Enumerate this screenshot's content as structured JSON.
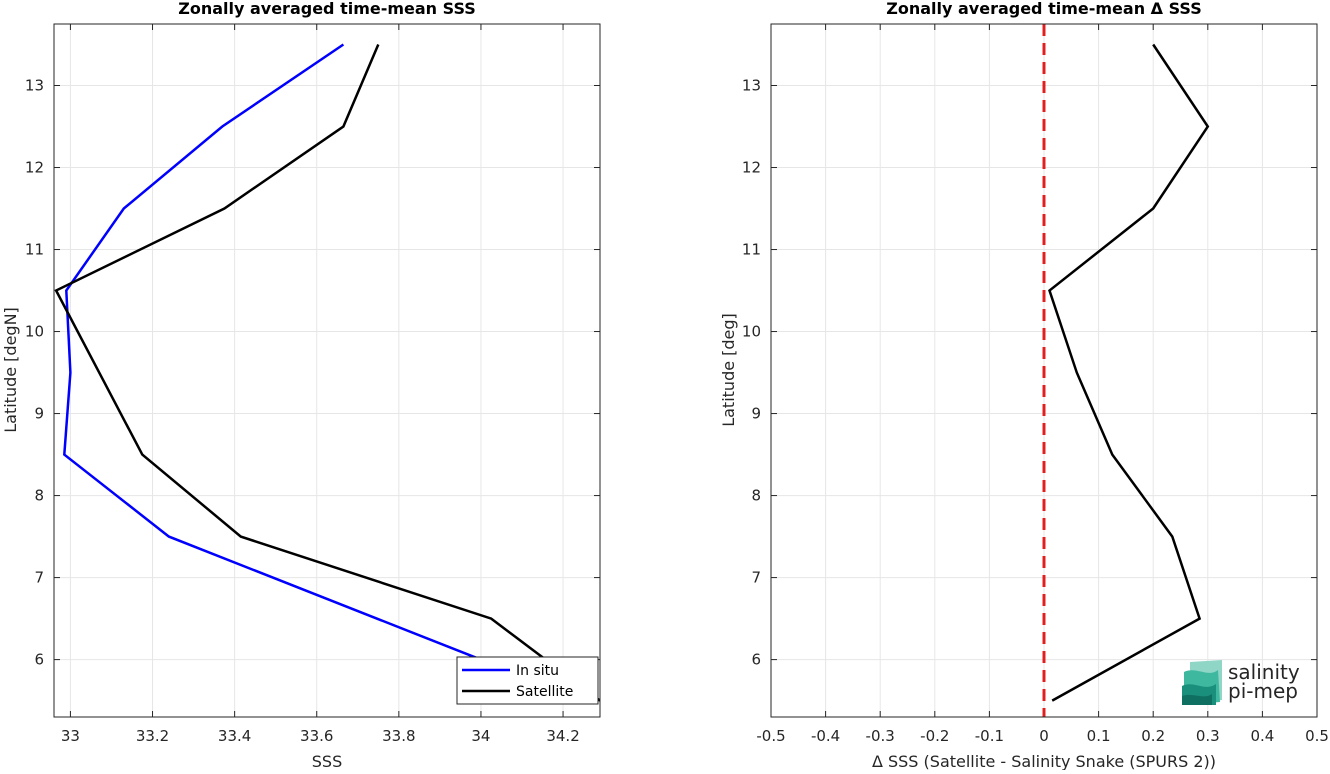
{
  "chart_data": [
    {
      "type": "line",
      "title": "Zonally averaged time-mean SSS",
      "xlabel": "SSS",
      "ylabel": "Latitude [degN]",
      "xlim": [
        32.96,
        34.29
      ],
      "ylim": [
        5.3,
        13.75
      ],
      "xticks": [
        33,
        33.2,
        33.4,
        33.6,
        33.8,
        34,
        34.2
      ],
      "xtick_labels": [
        "33",
        "33.2",
        "33.4",
        "33.6",
        "33.8",
        "34",
        "34.2"
      ],
      "yticks": [
        6,
        7,
        8,
        9,
        10,
        11,
        12,
        13
      ],
      "ytick_labels": [
        "6",
        "7",
        "8",
        "9",
        "10",
        "11",
        "12",
        "13"
      ],
      "grid": true,
      "legend": "bottom-right",
      "series": [
        {
          "name": "In situ",
          "color": "#0000ff",
          "points": [
            [
              33.665,
              13.5
            ],
            [
              33.37,
              12.5
            ],
            [
              33.13,
              11.5
            ],
            [
              32.99,
              10.5
            ],
            [
              33.0,
              9.5
            ],
            [
              32.985,
              8.5
            ],
            [
              33.24,
              7.5
            ],
            [
              34.0,
              6.0
            ]
          ]
        },
        {
          "name": "Satellite",
          "color": "#000000",
          "points": [
            [
              33.75,
              13.5
            ],
            [
              33.665,
              12.5
            ],
            [
              33.375,
              11.5
            ],
            [
              32.965,
              10.5
            ],
            [
              33.175,
              8.5
            ],
            [
              33.415,
              7.5
            ],
            [
              34.025,
              6.5
            ],
            [
              34.29,
              5.5
            ]
          ]
        }
      ]
    },
    {
      "type": "line",
      "title": "Zonally averaged time-mean Δ SSS",
      "xlabel": "Δ SSS (Satellite - Salinity Snake (SPURS 2))",
      "ylabel": "Latitude [deg]",
      "xlim": [
        -0.5,
        0.5
      ],
      "ylim": [
        5.3,
        13.75
      ],
      "xticks": [
        -0.5,
        -0.4,
        -0.3,
        -0.2,
        -0.1,
        0,
        0.1,
        0.2,
        0.3,
        0.4,
        0.5
      ],
      "xtick_labels": [
        "-0.5",
        "-0.4",
        "-0.3",
        "-0.2",
        "-0.1",
        "0",
        "0.1",
        "0.2",
        "0.3",
        "0.4",
        "0.5"
      ],
      "yticks": [
        6,
        7,
        8,
        9,
        10,
        11,
        12,
        13
      ],
      "ytick_labels": [
        "6",
        "7",
        "8",
        "9",
        "10",
        "11",
        "12",
        "13"
      ],
      "grid": true,
      "reference_line": {
        "x": 0,
        "color": "#e02020",
        "style": "dashed"
      },
      "series": [
        {
          "color": "#000000",
          "points": [
            [
              0.2,
              13.5
            ],
            [
              0.3,
              12.5
            ],
            [
              0.2,
              11.5
            ],
            [
              0.01,
              10.5
            ],
            [
              0.06,
              9.5
            ],
            [
              0.125,
              8.5
            ],
            [
              0.235,
              7.5
            ],
            [
              0.285,
              6.5
            ],
            [
              0.015,
              5.5
            ]
          ]
        }
      ]
    }
  ],
  "logo": {
    "line1": "salinity",
    "line2": "pi-mep",
    "color": "#1aa58f"
  }
}
